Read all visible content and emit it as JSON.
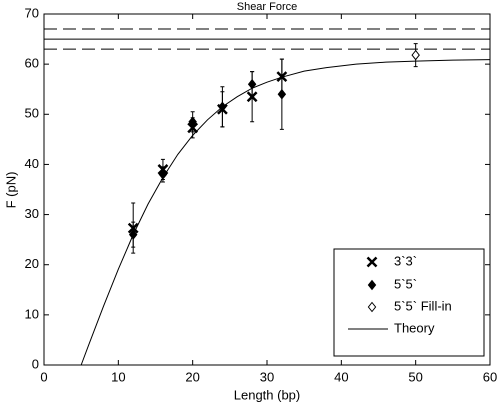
{
  "chart_data": {
    "type": "scatter",
    "title": "Shear Force",
    "x_label": "Length (bp)",
    "y_label": "F (pN)",
    "xlim": [
      0,
      60
    ],
    "ylim": [
      0,
      70
    ],
    "xticks": [
      0,
      10,
      20,
      30,
      40,
      50,
      60
    ],
    "yticks": [
      0,
      10,
      20,
      30,
      40,
      50,
      60,
      70
    ],
    "grid": false,
    "legend_position": "lower right",
    "reference_lines": [
      {
        "y": 67,
        "style": "dashed"
      },
      {
        "y": 65,
        "style": "solid"
      },
      {
        "y": 63,
        "style": "dashed"
      }
    ],
    "series": [
      {
        "name": "3`3`",
        "marker": "x",
        "color": "#000000",
        "x": [
          12,
          16,
          20,
          24,
          28,
          32
        ],
        "values": [
          27.3,
          39,
          47.3,
          51,
          53.5,
          57.5
        ],
        "errors": [
          5,
          2,
          2,
          3.5,
          5,
          3.5
        ]
      },
      {
        "name": "5`5`",
        "marker": "diamond",
        "color": "#000000",
        "x": [
          12,
          16,
          20,
          24,
          28,
          32
        ],
        "values": [
          26,
          38,
          48.5,
          51.5,
          56,
          54
        ],
        "errors": [
          2.5,
          1.5,
          2,
          4,
          2.5,
          7
        ]
      },
      {
        "name": "5`5` Fill-in",
        "marker": "open-diamond",
        "color": "#000000",
        "x": [
          50
        ],
        "values": [
          61.8
        ],
        "errors": [
          2.3
        ]
      },
      {
        "name": "Theory",
        "marker": "line",
        "color": "#000000",
        "x": [
          5,
          6,
          8,
          10,
          12,
          14,
          16,
          18,
          20,
          22,
          24,
          26,
          28,
          30,
          32,
          35,
          38,
          42,
          46,
          50,
          55,
          60
        ],
        "values": [
          0,
          3.95,
          11.7,
          19.1,
          26.0,
          32.1,
          37.4,
          42.0,
          45.8,
          48.9,
          51.5,
          53.5,
          55.2,
          56.4,
          57.4,
          58.6,
          59.3,
          60.0,
          60.4,
          60.6,
          60.8,
          60.9
        ]
      }
    ]
  }
}
